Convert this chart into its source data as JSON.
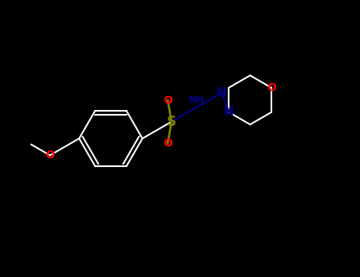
{
  "background_color": "#000000",
  "bond_color": "#ffffff",
  "sulfur_color": "#808000",
  "oxygen_color": "#ff0000",
  "nitrogen_color": "#00008b",
  "lw": 1.5,
  "lw_thick": 2.0,
  "figsize": [
    4.55,
    3.5
  ],
  "dpi": 100,
  "xlim": [
    0,
    9.1
  ],
  "ylim": [
    0,
    7.0
  ]
}
